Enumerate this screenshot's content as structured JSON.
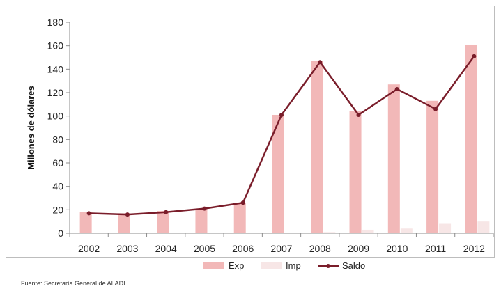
{
  "chart_data": {
    "type": "bar",
    "categories": [
      "2002",
      "2003",
      "2004",
      "2005",
      "2006",
      "2007",
      "2008",
      "2009",
      "2010",
      "2011",
      "2012"
    ],
    "series": [
      {
        "name": "Exp",
        "type": "bar",
        "values": [
          18,
          17,
          19,
          21,
          26,
          101,
          147,
          104,
          127,
          113,
          161
        ]
      },
      {
        "name": "Imp",
        "type": "bar",
        "values": [
          0,
          0,
          0,
          0,
          0,
          0,
          1,
          3,
          4,
          8,
          10
        ]
      },
      {
        "name": "Saldo",
        "type": "line",
        "values": [
          17,
          16,
          18,
          21,
          26,
          101,
          146,
          101,
          123,
          106,
          151
        ]
      }
    ],
    "title": "",
    "xlabel": "",
    "ylabel": "Millones de dólares",
    "ylim": [
      0,
      180
    ],
    "yticks": [
      0,
      20,
      40,
      60,
      80,
      100,
      120,
      140,
      160,
      180
    ],
    "grid": false,
    "legend": "bottom",
    "colors": {
      "Exp": "#f2b8b8",
      "Imp": "#f7e6e6",
      "Saldo": "#7a1d2a"
    }
  },
  "source": "Fuente: Secretaría General de ALADI"
}
